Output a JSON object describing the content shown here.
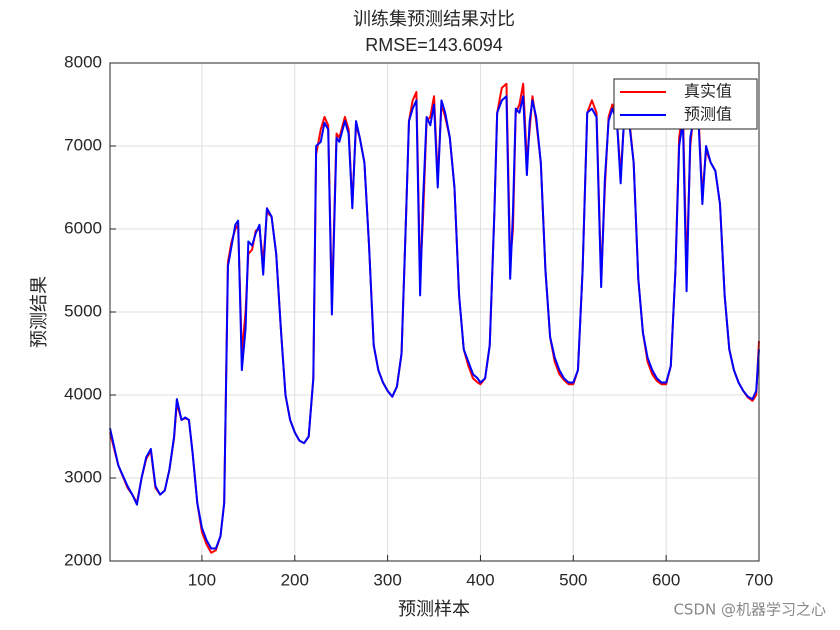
{
  "chart_data": {
    "type": "line",
    "title": "训练集预测结果对比",
    "subtitle": "RMSE=143.6094",
    "x_label": "预测样本",
    "y_label": "预测结果",
    "watermark": "CSDN @机器学习之心",
    "xlim": [
      1,
      700
    ],
    "ylim": [
      2000,
      8000
    ],
    "xticks": [
      100,
      200,
      300,
      400,
      500,
      600,
      700
    ],
    "yticks": [
      2000,
      3000,
      4000,
      5000,
      6000,
      7000,
      8000
    ],
    "grid": true,
    "legend": "northeast",
    "x": [
      1,
      10,
      20,
      25,
      30,
      35,
      40,
      45,
      50,
      55,
      60,
      65,
      70,
      73,
      78,
      82,
      86,
      90,
      95,
      100,
      105,
      110,
      115,
      120,
      124,
      128,
      132,
      136,
      139,
      143,
      147,
      150,
      154,
      158,
      162,
      166,
      170,
      175,
      180,
      185,
      190,
      195,
      200,
      205,
      210,
      215,
      220,
      223,
      228,
      232,
      236,
      240,
      245,
      248,
      254,
      258,
      262,
      266,
      270,
      275,
      280,
      285,
      290,
      295,
      300,
      305,
      310,
      315,
      320,
      323,
      327,
      331,
      335,
      338,
      342,
      346,
      350,
      354,
      358,
      362,
      367,
      372,
      377,
      382,
      387,
      392,
      397,
      400,
      405,
      410,
      415,
      418,
      423,
      428,
      432,
      435,
      438,
      442,
      446,
      450,
      453,
      456,
      460,
      465,
      470,
      475,
      480,
      485,
      490,
      495,
      500,
      505,
      510,
      515,
      520,
      525,
      530,
      534,
      538,
      542,
      547,
      551,
      555,
      560,
      565,
      570,
      575,
      580,
      585,
      590,
      595,
      600,
      605,
      610,
      614,
      618,
      622,
      626,
      630,
      634,
      639,
      643,
      648,
      653,
      658,
      663,
      668,
      673,
      678,
      683,
      688,
      693,
      697,
      700
    ],
    "series": [
      {
        "name": "真实值",
        "color": "#ff0000",
        "values": [
          3550,
          3150,
          2880,
          2800,
          2700,
          3000,
          3230,
          3330,
          2880,
          2800,
          2850,
          3100,
          3480,
          3900,
          3700,
          3720,
          3700,
          3300,
          2700,
          2350,
          2200,
          2100,
          2130,
          2300,
          2700,
          5600,
          5850,
          6000,
          6050,
          4500,
          5000,
          5700,
          5750,
          5980,
          6000,
          5600,
          6200,
          6150,
          5700,
          4800,
          4000,
          3700,
          3550,
          3450,
          3420,
          3500,
          4200,
          6900,
          7200,
          7350,
          7250,
          5100,
          7150,
          7100,
          7350,
          7200,
          6300,
          7250,
          7100,
          6800,
          5800,
          4600,
          4300,
          4150,
          4050,
          3980,
          4100,
          4500,
          6200,
          7300,
          7550,
          7650,
          5400,
          6100,
          7300,
          7350,
          7600,
          6600,
          7500,
          7350,
          7100,
          6500,
          5200,
          4550,
          4350,
          4200,
          4150,
          4130,
          4200,
          4600,
          6200,
          7400,
          7700,
          7750,
          5600,
          6000,
          7400,
          7500,
          7750,
          6800,
          7200,
          7600,
          7300,
          6800,
          5500,
          4700,
          4400,
          4250,
          4180,
          4130,
          4130,
          4300,
          5500,
          7400,
          7550,
          7400,
          5400,
          6500,
          7350,
          7500,
          7300,
          6650,
          7350,
          7350,
          6800,
          5400,
          4750,
          4400,
          4250,
          4170,
          4130,
          4130,
          4350,
          5500,
          7100,
          7450,
          5500,
          7000,
          7450,
          7550,
          6400,
          6950,
          6800,
          6700,
          6300,
          5200,
          4550,
          4300,
          4150,
          4050,
          3970,
          3930,
          4000,
          4650
        ]
      },
      {
        "name": "预测值",
        "color": "#0000ff",
        "values": [
          3600,
          3150,
          2900,
          2800,
          2680,
          3000,
          3250,
          3350,
          2900,
          2800,
          2850,
          3100,
          3500,
          3950,
          3700,
          3730,
          3700,
          3300,
          2700,
          2400,
          2250,
          2150,
          2150,
          2300,
          2700,
          5550,
          5800,
          6050,
          6100,
          4300,
          4800,
          5850,
          5800,
          5950,
          6050,
          5450,
          6250,
          6150,
          5700,
          4800,
          4000,
          3700,
          3550,
          3450,
          3420,
          3500,
          4200,
          7000,
          7050,
          7280,
          7200,
          4970,
          7100,
          7050,
          7300,
          7150,
          6250,
          7300,
          7100,
          6800,
          5800,
          4600,
          4300,
          4150,
          4050,
          3980,
          4100,
          4500,
          6200,
          7300,
          7450,
          7550,
          5200,
          6300,
          7350,
          7250,
          7500,
          6500,
          7550,
          7400,
          7100,
          6500,
          5200,
          4550,
          4400,
          4250,
          4200,
          4150,
          4200,
          4600,
          6200,
          7400,
          7550,
          7600,
          5400,
          6200,
          7450,
          7400,
          7600,
          6650,
          7300,
          7550,
          7350,
          6800,
          5500,
          4700,
          4450,
          4300,
          4200,
          4150,
          4150,
          4300,
          5500,
          7400,
          7450,
          7350,
          5300,
          6600,
          7300,
          7450,
          7300,
          6550,
          7400,
          7300,
          6800,
          5400,
          4750,
          4450,
          4300,
          4200,
          4150,
          4150,
          4350,
          5500,
          7000,
          7300,
          5250,
          7100,
          7350,
          7500,
          6300,
          7000,
          6800,
          6700,
          6300,
          5200,
          4550,
          4300,
          4150,
          4050,
          3980,
          3950,
          4050,
          4550
        ]
      }
    ]
  }
}
